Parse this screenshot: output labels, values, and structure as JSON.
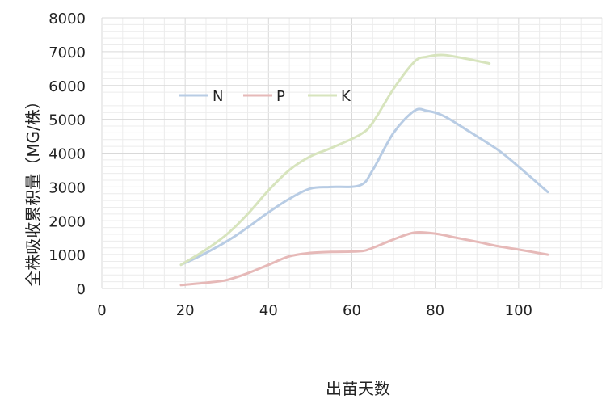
{
  "chart_data": {
    "type": "line",
    "xlabel": "出苗天数",
    "ylabel": "全株吸收累积量（MG/株）",
    "xlim": [
      0,
      120
    ],
    "ylim": [
      0,
      8000
    ],
    "xticks": [
      0,
      20,
      40,
      60,
      80,
      100
    ],
    "yticks": [
      0,
      1000,
      2000,
      3000,
      4000,
      5000,
      6000,
      7000,
      8000
    ],
    "grid": true,
    "legend_position": "top-left",
    "series": [
      {
        "name": "N",
        "color": "#b8cce4",
        "x": [
          19,
          25,
          32,
          40,
          45,
          50,
          55,
          62,
          65,
          70,
          75,
          78,
          82,
          88,
          95,
          100,
          107
        ],
        "y": [
          700,
          1050,
          1550,
          2250,
          2650,
          2950,
          3000,
          3050,
          3500,
          4600,
          5250,
          5250,
          5100,
          4650,
          4100,
          3600,
          2850
        ]
      },
      {
        "name": "P",
        "color": "#e6b9b8",
        "x": [
          19,
          25,
          30,
          35,
          40,
          45,
          50,
          55,
          62,
          65,
          70,
          75,
          80,
          85,
          90,
          95,
          100,
          107
        ],
        "y": [
          100,
          170,
          250,
          450,
          700,
          950,
          1050,
          1080,
          1100,
          1200,
          1450,
          1650,
          1620,
          1500,
          1380,
          1250,
          1150,
          1000
        ]
      },
      {
        "name": "K",
        "color": "#d7e4bd",
        "x": [
          19,
          25,
          30,
          35,
          40,
          45,
          50,
          55,
          62,
          65,
          70,
          75,
          78,
          82,
          87,
          93
        ],
        "y": [
          700,
          1150,
          1600,
          2200,
          2900,
          3500,
          3900,
          4150,
          4550,
          4900,
          5900,
          6700,
          6850,
          6900,
          6800,
          6650
        ]
      }
    ]
  }
}
